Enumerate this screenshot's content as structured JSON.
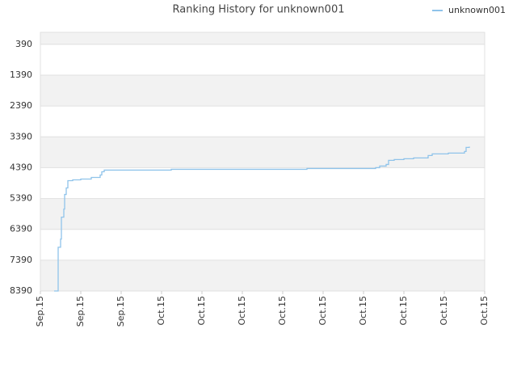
{
  "chart_data": {
    "type": "line",
    "title": "Ranking History for unknown001",
    "x": [
      0.34,
      0.42,
      0.44,
      0.5,
      0.52,
      0.58,
      0.6,
      0.64,
      0.68,
      0.8,
      1.0,
      1.26,
      1.48,
      1.52,
      1.58,
      3.24,
      6.6,
      8.3,
      8.4,
      8.56,
      8.62,
      8.76,
      9.0,
      9.24,
      9.6,
      9.7,
      10.1,
      10.5,
      10.54,
      10.62
    ],
    "series": [
      {
        "name": "unknown001",
        "color": "#8fc3ea",
        "values": [
          8390,
          8390,
          6970,
          6706,
          5995,
          5732,
          5258,
          5048,
          4811,
          4785,
          4758,
          4706,
          4627,
          4522,
          4469,
          4443,
          4416,
          4390,
          4337,
          4285,
          4153,
          4127,
          4100,
          4074,
          3995,
          3943,
          3916,
          3864,
          3732,
          3706
        ]
      }
    ],
    "xlim": [
      0,
      11
    ],
    "xticks": [
      {
        "value": 0,
        "label": "Sep.15"
      },
      {
        "value": 1,
        "label": "Sep.15"
      },
      {
        "value": 2,
        "label": "Sep.15"
      },
      {
        "value": 3,
        "label": "Oct.15"
      },
      {
        "value": 4,
        "label": "Oct.15"
      },
      {
        "value": 5,
        "label": "Oct.15"
      },
      {
        "value": 6,
        "label": "Oct.15"
      },
      {
        "value": 7,
        "label": "Oct.15"
      },
      {
        "value": 8,
        "label": "Oct.15"
      },
      {
        "value": 9,
        "label": "Oct.15"
      },
      {
        "value": 10,
        "label": "Oct.15"
      },
      {
        "value": 11,
        "label": "Oct.15"
      }
    ],
    "ylim": [
      8390,
      0
    ],
    "yticks": [
      390,
      1390,
      2390,
      3390,
      4390,
      5390,
      6390,
      7390,
      8390
    ],
    "grid": true,
    "legend": "top-right"
  }
}
